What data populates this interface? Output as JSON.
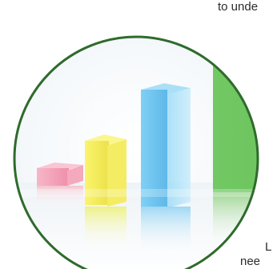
{
  "captions": {
    "top": "to unde",
    "bottom_line_1": "L",
    "bottom_line_2": "nee"
  },
  "illustration": {
    "subject": "3d-bar-chart-illustration",
    "bar_colors": [
      "#f2a0b8",
      "#f3ea5a",
      "#6ec6f0",
      "#6cc460"
    ],
    "ring_color": "#2f6b2c"
  }
}
